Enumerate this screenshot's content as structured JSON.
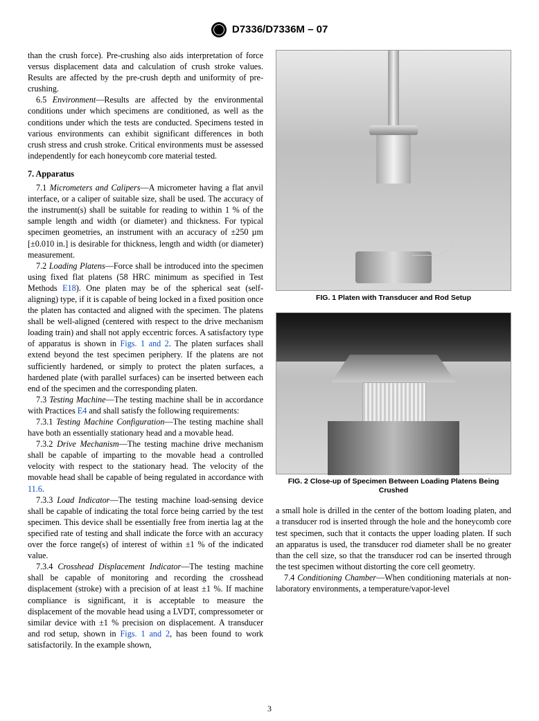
{
  "doc_header": "D7336/D7336M – 07",
  "page_number": "3",
  "left_column": {
    "p_cont": "than the crush force). Pre-crushing also aids interpretation of force versus displacement data and calculation of crush stroke values. Results are affected by the pre-crush depth and uniformity of pre-crushing.",
    "p65_lead": "6.5 ",
    "p65_head": "Environment",
    "p65_body": "—Results are affected by the environmental conditions under which specimens are conditioned, as well as the conditions under which the tests are conducted. Specimens tested in various environments can exhibit significant differences in both crush stress and crush stroke. Critical environments must be assessed independently for each honeycomb core material tested.",
    "s7": "7. Apparatus",
    "p71_lead": "7.1 ",
    "p71_head": "Micrometers and Calipers",
    "p71_body": "—A micrometer having a flat anvil interface, or a caliper of suitable size, shall be used. The accuracy of the instrument(s) shall be suitable for reading to within 1 % of the sample length and width (or diameter) and thickness. For typical specimen geometries, an instrument with an accuracy of ±250 µm [±0.010 in.] is desirable for thickness, length and width (or diameter) measurement.",
    "p72_lead": "7.2 ",
    "p72_head": "Loading Platens",
    "p72_body_a": "—Force shall be introduced into the specimen using fixed flat platens (58 HRC minimum as specified in Test Methods ",
    "p72_ref1": "E18",
    "p72_body_b": "). One platen may be of the spherical seat (self-aligning) type, if it is capable of being locked in a fixed position once the platen has contacted and aligned with the specimen. The platens shall be well-aligned (centered with respect to the drive mechanism loading train) and shall not apply eccentric forces. A satisfactory type of apparatus is shown in ",
    "p72_ref2": "Figs. 1 and 2",
    "p72_body_c": ". The platen surfaces shall extend beyond the test specimen periphery. If the platens are not sufficiently hardened, or simply to protect the platen surfaces, a hardened plate (with parallel surfaces) can be inserted between each end of the specimen and the corresponding platen.",
    "p73_lead": "7.3 ",
    "p73_head": "Testing Machine",
    "p73_body_a": "—The testing machine shall be in accordance with Practices ",
    "p73_ref": "E4",
    "p73_body_b": " and shall satisfy the following requirements:",
    "p731_lead": "7.3.1 ",
    "p731_head": "Testing Machine Configuration",
    "p731_body": "—The testing machine shall have both an essentially stationary head and a movable head.",
    "p732_lead": "7.3.2 ",
    "p732_head": "Drive Mechanism",
    "p732_body_a": "—The testing machine drive mechanism shall be capable of imparting to the movable head a controlled velocity with respect to the stationary head. The velocity of the movable head shall be capable of being regulated in accordance with ",
    "p732_ref": "11.6",
    "p732_body_b": ".",
    "p733_lead": "7.3.3 ",
    "p733_head": "Load Indicator",
    "p733_body": "—The testing machine load-sensing device shall be capable of indicating the total force being carried by the test specimen. This device shall be essentially free from inertia lag at the specified rate of testing and shall indicate the force with an accuracy over the force range(s) of interest of within ±1 % of the indicated value.",
    "p734_lead": "7.3.4 ",
    "p734_head": "Crosshead Displacement Indicator",
    "p734_body_a": "—The testing machine shall be capable of monitoring and recording the crosshead displacement (stroke) with a precision of at least ±1 %. If machine compliance is significant, it is acceptable to measure the displacement of the movable head using a LVDT, compressometer or similar device with ±1 % precision on displacement. A transducer and rod setup, shown in ",
    "p734_ref": "Figs. 1 and 2",
    "p734_body_b": ", has been found to work satisfactorily. In the example shown,"
  },
  "right_column": {
    "fig1_caption": "FIG. 1 Platen with Transducer and Rod Setup",
    "fig2_caption": "FIG. 2 Close-up of Specimen Between Loading Platens Being Crushed",
    "p_cont": "a small hole is drilled in the center of the bottom loading platen, and a transducer rod is inserted through the hole and the honeycomb core test specimen, such that it contacts the upper loading platen. If such an apparatus is used, the transducer rod diameter shall be no greater than the cell size, so that the transducer rod can be inserted through the test specimen without distorting the core cell geometry.",
    "p74_lead": "7.4 ",
    "p74_head": "Conditioning Chamber",
    "p74_body": "—When conditioning materials at non-laboratory environments, a temperature/vapor-level"
  }
}
